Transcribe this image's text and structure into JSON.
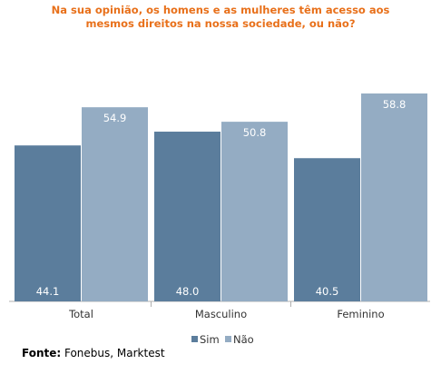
{
  "chart_data": {
    "type": "bar",
    "title": "Na sua opinião, os homens e as mulheres têm acesso aos mesmos direitos na nossa sociedade, ou não?",
    "title_lines": [
      "Na sua opinião, os homens e as mulheres têm acesso aos",
      "mesmos direitos na nossa sociedade, ou não?"
    ],
    "categories": [
      "Total",
      "Masculino",
      "Feminino"
    ],
    "series": [
      {
        "name": "Sim",
        "values": [
          44.1,
          48.0,
          40.5
        ],
        "labels": [
          "44.1",
          "48.0",
          "40.5"
        ],
        "color": "#5b7d9c"
      },
      {
        "name": "Não",
        "values": [
          54.9,
          50.8,
          58.8
        ],
        "labels": [
          "54.9",
          "50.8",
          "58.8"
        ],
        "color": "#94acc3"
      }
    ],
    "ylim": [
      0,
      61.1
    ],
    "legend_position": "bottom-center",
    "grid": false
  },
  "source": {
    "label": "Fonte:",
    "text": " Fonebus, Marktest"
  }
}
